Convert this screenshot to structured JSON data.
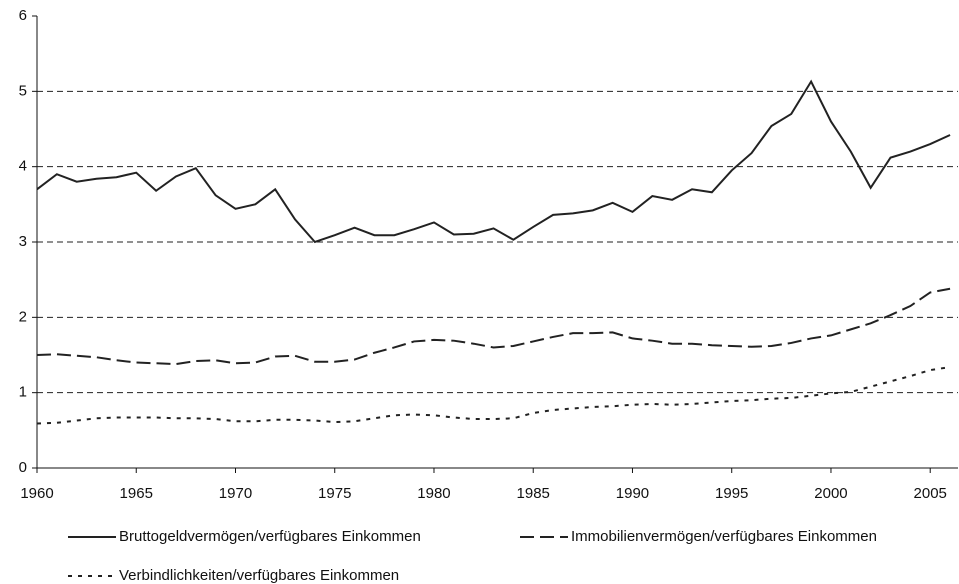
{
  "chart_data": {
    "type": "line",
    "x": [
      1960,
      1961,
      1962,
      1963,
      1964,
      1965,
      1966,
      1967,
      1968,
      1969,
      1970,
      1971,
      1972,
      1973,
      1974,
      1975,
      1976,
      1977,
      1978,
      1979,
      1980,
      1981,
      1982,
      1983,
      1984,
      1985,
      1986,
      1987,
      1988,
      1989,
      1990,
      1991,
      1992,
      1993,
      1994,
      1995,
      1996,
      1997,
      1998,
      1999,
      2000,
      2001,
      2002,
      2003,
      2004,
      2005,
      2006
    ],
    "series": [
      {
        "name": "Bruttogeldvermögen/verfügbares Einkommen",
        "color": "#222222",
        "style": "solid",
        "values": [
          3.7,
          3.9,
          3.8,
          3.84,
          3.86,
          3.92,
          3.68,
          3.87,
          3.98,
          3.62,
          3.44,
          3.5,
          3.7,
          3.3,
          3.0,
          3.09,
          3.19,
          3.09,
          3.09,
          3.17,
          3.26,
          3.1,
          3.11,
          3.18,
          3.03,
          3.2,
          3.36,
          3.38,
          3.42,
          3.52,
          3.4,
          3.61,
          3.56,
          3.7,
          3.66,
          3.95,
          4.18,
          4.54,
          4.7,
          5.13,
          4.6,
          4.2,
          3.72,
          4.12,
          4.2,
          4.3,
          4.42
        ]
      },
      {
        "name": "Immobilienvermögen/verfügbares Einkommen",
        "color": "#222222",
        "style": "dashed",
        "values": [
          1.5,
          1.51,
          1.49,
          1.47,
          1.43,
          1.4,
          1.39,
          1.38,
          1.42,
          1.43,
          1.39,
          1.4,
          1.48,
          1.49,
          1.41,
          1.41,
          1.44,
          1.53,
          1.6,
          1.68,
          1.7,
          1.69,
          1.65,
          1.6,
          1.62,
          1.68,
          1.74,
          1.79,
          1.79,
          1.8,
          1.72,
          1.69,
          1.65,
          1.65,
          1.63,
          1.62,
          1.61,
          1.62,
          1.66,
          1.72,
          1.76,
          1.84,
          1.92,
          2.03,
          2.15,
          2.33,
          2.38
        ]
      },
      {
        "name": "Verbindlichkeiten/verfügbares Einkommen",
        "color": "#222222",
        "style": "dotted",
        "values": [
          0.59,
          0.6,
          0.63,
          0.66,
          0.67,
          0.67,
          0.67,
          0.66,
          0.66,
          0.65,
          0.62,
          0.62,
          0.64,
          0.64,
          0.63,
          0.61,
          0.62,
          0.66,
          0.7,
          0.71,
          0.7,
          0.67,
          0.65,
          0.65,
          0.66,
          0.73,
          0.77,
          0.79,
          0.81,
          0.82,
          0.84,
          0.85,
          0.84,
          0.85,
          0.87,
          0.89,
          0.9,
          0.92,
          0.93,
          0.96,
          0.99,
          1.01,
          1.08,
          1.15,
          1.22,
          1.3,
          1.34
        ]
      }
    ],
    "xlim": [
      1960,
      2006.4
    ],
    "xticks": [
      1960,
      1965,
      1970,
      1975,
      1980,
      1985,
      1990,
      1995,
      2000,
      2005
    ],
    "ylim": [
      0,
      6
    ],
    "yticks": [
      0,
      1,
      2,
      3,
      4,
      5,
      6
    ],
    "grid": true,
    "legend": "bottom"
  }
}
